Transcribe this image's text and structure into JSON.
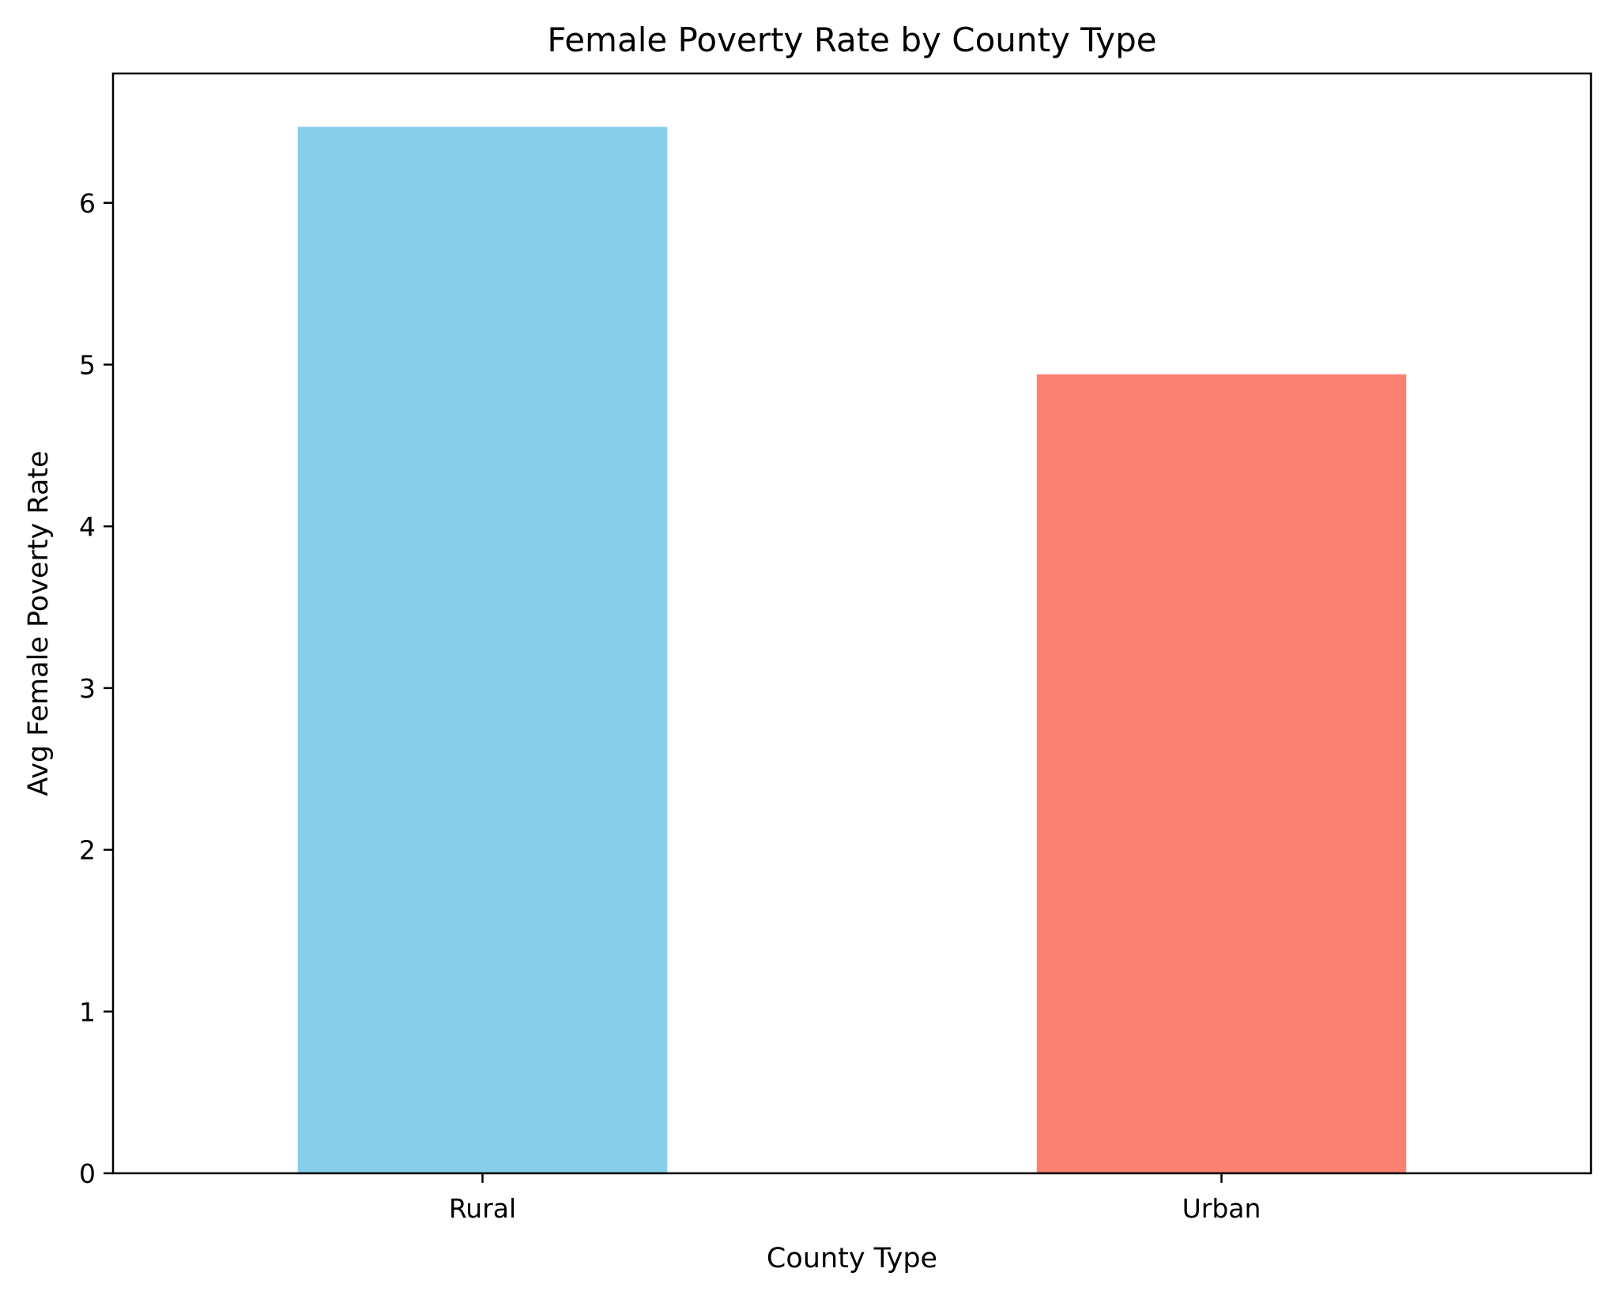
{
  "chart_data": {
    "type": "bar",
    "title": "Female Poverty Rate by County Type",
    "xlabel": "County Type",
    "ylabel": "Avg Female Poverty Rate",
    "categories": [
      "Rural",
      "Urban"
    ],
    "values": [
      6.47,
      4.94
    ],
    "colors": [
      "#87ceeb",
      "#fa8072"
    ],
    "ylim": [
      0,
      6.8
    ],
    "yticks": [
      {
        "value": 0,
        "label": "0"
      },
      {
        "value": 1,
        "label": "1"
      },
      {
        "value": 2,
        "label": "2"
      },
      {
        "value": 3,
        "label": "3"
      },
      {
        "value": 4,
        "label": "4"
      },
      {
        "value": 5,
        "label": "5"
      },
      {
        "value": 6,
        "label": "6"
      }
    ],
    "grid": false,
    "legend": "none"
  }
}
